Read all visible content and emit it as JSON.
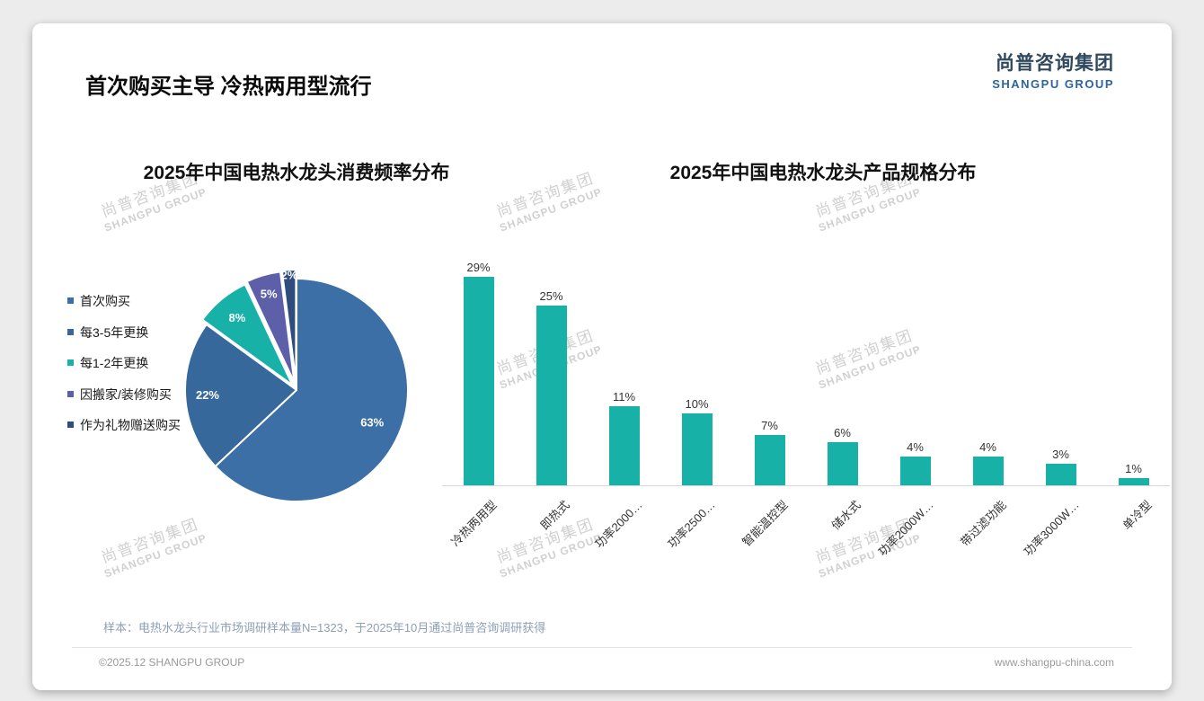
{
  "page": {
    "title": "首次购买主导 冷热两用型流行",
    "logo": {
      "cn": "尚普咨询集团",
      "en": "SHANGPU GROUP"
    },
    "watermark": {
      "cn": "尚普咨询集团",
      "en": "SHANGPU GROUP"
    },
    "footnote": "样本：电热水龙头行业市场调研样本量N=1323，于2025年10月通过尚普咨询调研获得",
    "copyright": "©2025.12 SHANGPU GROUP",
    "website": "www.shangpu-china.com"
  },
  "chart_data": [
    {
      "type": "pie",
      "title": "2025年中国电热水龙头消费频率分布",
      "labels": [
        "首次购买",
        "每3-5年更换",
        "每1-2年更换",
        "因搬家/装修购买",
        "作为礼物赠送购买"
      ],
      "values": [
        63,
        22,
        8,
        5,
        2
      ],
      "value_labels": [
        "63%",
        "22%",
        "8%",
        "5%",
        "2%"
      ],
      "colors": [
        "#3c6fa5",
        "#37689c",
        "#17b1a7",
        "#5d60a8",
        "#2e4d7d"
      ],
      "legend_position": "left"
    },
    {
      "type": "bar",
      "title": "2025年中国电热水龙头产品规格分布",
      "categories": [
        "冷热两用型",
        "即热式",
        "功率2000…",
        "功率2500…",
        "智能温控型",
        "储水式",
        "功率2000W…",
        "带过滤功能",
        "功率3000W…",
        "单冷型"
      ],
      "values": [
        29,
        25,
        11,
        10,
        7,
        6,
        4,
        4,
        3,
        1
      ],
      "value_labels": [
        "29%",
        "25%",
        "11%",
        "10%",
        "7%",
        "6%",
        "4%",
        "4%",
        "3%",
        "1%"
      ],
      "bar_color": "#17b1a7",
      "ylim": [
        0,
        30
      ],
      "grid": false,
      "value_label_position": "above",
      "xlabel": "",
      "ylabel": ""
    }
  ]
}
